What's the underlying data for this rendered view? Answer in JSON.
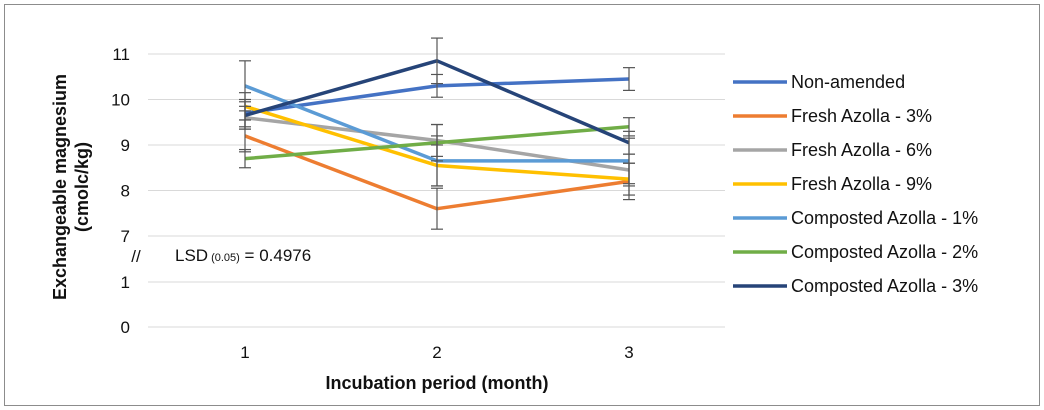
{
  "chart_data": {
    "type": "line",
    "x_categories": [
      "1",
      "2",
      "3"
    ],
    "xlabel": "Incubation period (month)",
    "ylabel_line1": "Exchangeable magnesium",
    "ylabel_line2": "(cmolc/kg)",
    "y_ticks_lower": [
      "0",
      "1"
    ],
    "y_ticks_upper": [
      "7",
      "8",
      "9",
      "10",
      "11"
    ],
    "axis_break": "//",
    "annotation": {
      "prefix": "LSD",
      "subscript": "(0.05)",
      "suffix": " = 0.4976"
    },
    "legend_position": "right",
    "grid": true,
    "series": [
      {
        "name": "Non-amended",
        "color": "#4472C4",
        "values": [
          9.7,
          10.3,
          10.45
        ],
        "errors": [
          0.3,
          0.25,
          0.25
        ]
      },
      {
        "name": "Fresh Azolla - 3%",
        "color": "#ED7D31",
        "values": [
          9.2,
          7.6,
          8.2
        ],
        "errors": [
          0.35,
          0.45,
          0.4
        ]
      },
      {
        "name": "Fresh Azolla - 6%",
        "color": "#A5A5A5",
        "values": [
          9.6,
          9.1,
          8.45
        ],
        "errors": [
          0.25,
          0.35,
          0.35
        ]
      },
      {
        "name": "Fresh Azolla - 9%",
        "color": "#FFC000",
        "values": [
          9.85,
          8.55,
          8.25
        ],
        "errors": [
          0.3,
          0.45,
          0.35
        ]
      },
      {
        "name": "Composted Azolla - 1%",
        "color": "#5B9BD5",
        "values": [
          10.3,
          8.65,
          8.65
        ],
        "errors": [
          0.55,
          0.55,
          0.5
        ]
      },
      {
        "name": "Composted Azolla - 2%",
        "color": "#70AD47",
        "values": [
          8.7,
          9.05,
          9.4
        ],
        "errors": [
          0.2,
          0.4,
          0.2
        ]
      },
      {
        "name": "Composted Azolla - 3%",
        "color": "#264478",
        "values": [
          9.65,
          10.85,
          9.05
        ],
        "errors": [
          0.3,
          0.5,
          0.25
        ]
      }
    ]
  }
}
